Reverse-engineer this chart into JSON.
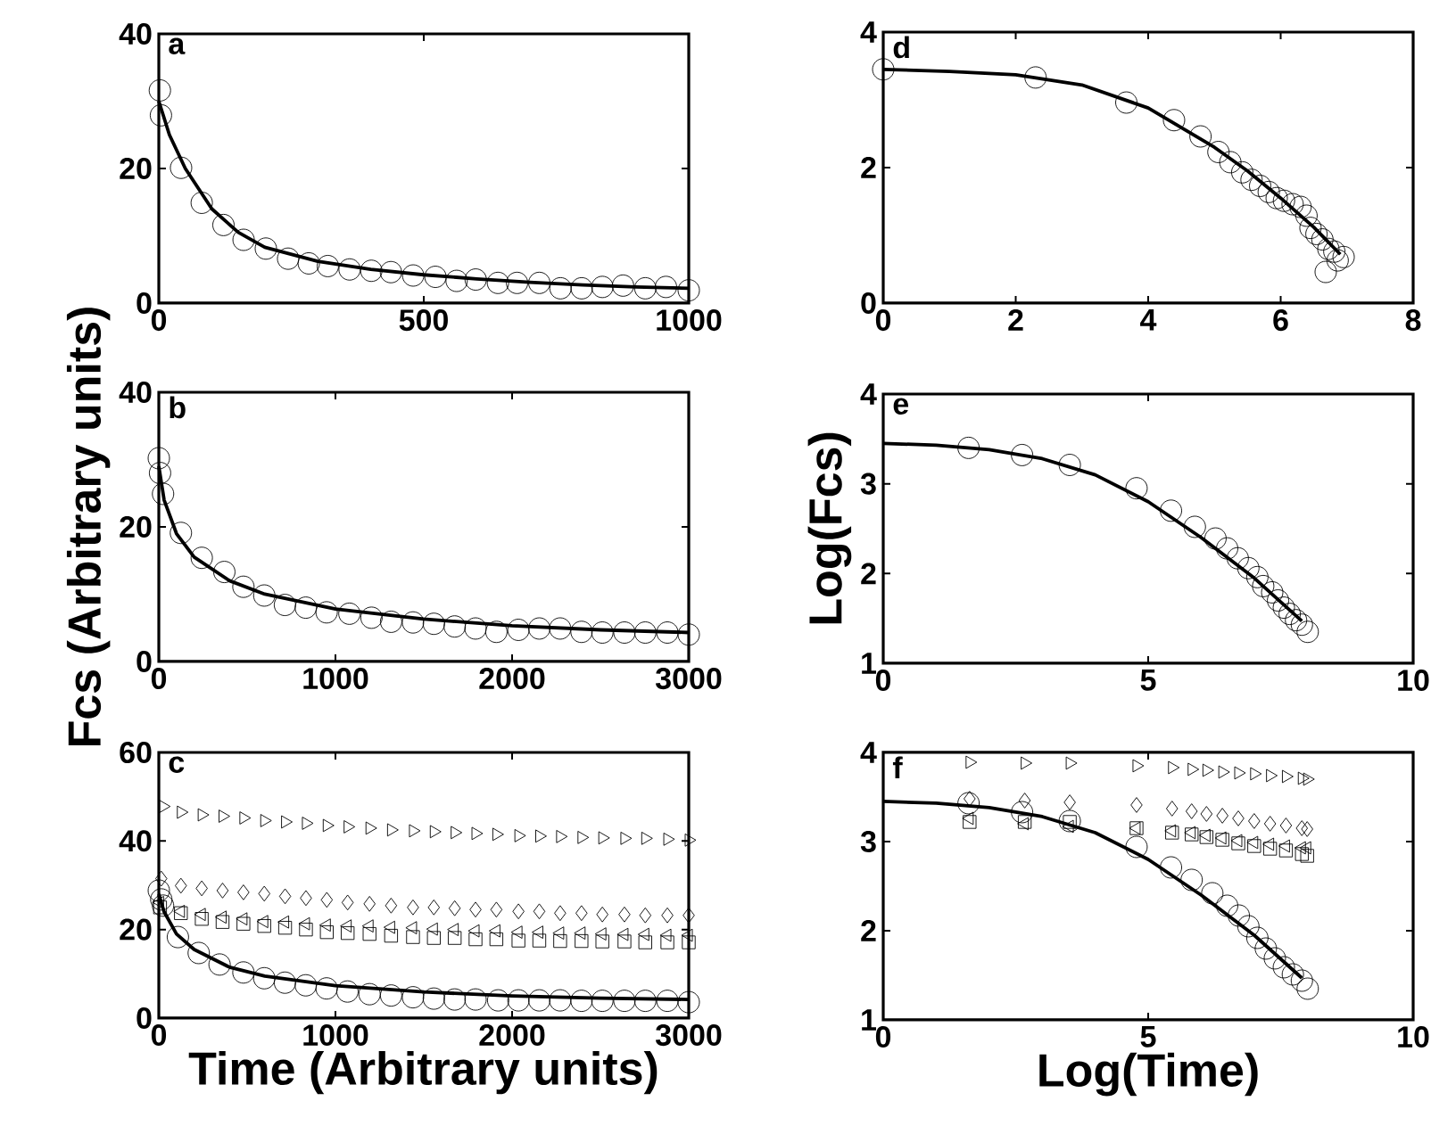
{
  "chart_data": [
    {
      "type": "scatter",
      "annotations": [
        "a"
      ],
      "xlim": [
        0,
        1000
      ],
      "ylim": [
        0,
        40
      ],
      "xticks": [
        0,
        500,
        1000
      ],
      "yticks": [
        0,
        20,
        40
      ],
      "series": [
        {
          "marker": "circle",
          "color": "#000000",
          "x": [
            2,
            4,
            42,
            81,
            122,
            160,
            202,
            244,
            283,
            319,
            360,
            401,
            438,
            480,
            522,
            562,
            598,
            640,
            676,
            718,
            758,
            798,
            837,
            876,
            918,
            957,
            1000
          ],
          "values": [
            31.6,
            27.9,
            20.1,
            14.9,
            11.6,
            9.4,
            8.1,
            6.6,
            5.9,
            5.5,
            5.0,
            4.8,
            4.6,
            4.1,
            3.9,
            3.3,
            3.5,
            3.0,
            3.0,
            3.0,
            2.2,
            2.2,
            2.4,
            2.6,
            2.2,
            2.4,
            1.9
          ]
        },
        {
          "type": "line",
          "color": "#000000",
          "x": [
            0,
            20,
            50,
            100,
            150,
            200,
            300,
            400,
            500,
            600,
            700,
            800,
            900,
            1000
          ],
          "values": [
            30,
            25,
            20,
            14,
            10.5,
            8.3,
            6.2,
            5,
            4.2,
            3.6,
            3.1,
            2.7,
            2.4,
            2.2
          ]
        }
      ]
    },
    {
      "type": "scatter",
      "annotations": [
        "b"
      ],
      "ylabel": "Fcs (Arbitrary units)",
      "xlim": [
        0,
        3000
      ],
      "ylim": [
        0,
        40
      ],
      "xticks": [
        0,
        1000,
        2000,
        3000
      ],
      "yticks": [
        0,
        20,
        40
      ],
      "series": [
        {
          "marker": "circle",
          "color": "#000000",
          "x": [
            0,
            7,
            24,
            125,
            243,
            371,
            479,
            597,
            714,
            832,
            950,
            1079,
            1204,
            1315,
            1439,
            1557,
            1675,
            1793,
            1911,
            2036,
            2154,
            2272,
            2393,
            2511,
            2636,
            2754,
            2879,
            3000
          ],
          "values": [
            30.2,
            28,
            24.9,
            19.1,
            15.4,
            13.3,
            11.1,
            9.8,
            8.4,
            8.0,
            7.3,
            7.1,
            6.5,
            5.9,
            5.8,
            5.6,
            5.2,
            4.9,
            4.4,
            4.7,
            4.9,
            4.9,
            4.4,
            4.3,
            4.3,
            4.3,
            4.3,
            4.0
          ]
        },
        {
          "type": "line",
          "color": "#000000",
          "x": [
            0,
            30,
            100,
            200,
            400,
            600,
            1000,
            1500,
            2000,
            2500,
            3000
          ],
          "values": [
            29,
            24,
            19,
            15.5,
            12,
            10,
            7.8,
            6.3,
            5.3,
            4.7,
            4.3
          ]
        }
      ]
    },
    {
      "type": "scatter",
      "annotations": [
        "c"
      ],
      "xlabel": "Time (Arbitrary units)",
      "xlim": [
        0,
        3000
      ],
      "ylim": [
        0,
        60
      ],
      "xticks": [
        0,
        1000,
        2000,
        3000
      ],
      "yticks": [
        0,
        20,
        40,
        60
      ],
      "series": [
        {
          "marker": "triangle-right",
          "color": "#000000",
          "x": [
            24,
            125,
            243,
            361,
            479,
            597,
            715,
            833,
            951,
            1069,
            1193,
            1315,
            1439,
            1557,
            1675,
            1793,
            1911,
            2036,
            2154,
            2272,
            2393,
            2511,
            2636,
            2754,
            2879,
            3000
          ],
          "values": [
            47.8,
            46.5,
            45.9,
            45.6,
            45.2,
            44.6,
            44.3,
            44.0,
            43.5,
            43.2,
            42.9,
            42.5,
            42.3,
            42.1,
            41.9,
            41.7,
            41.5,
            41.2,
            41.1,
            41.0,
            40.8,
            40.7,
            40.6,
            40.6,
            40.4,
            40.2
          ]
        },
        {
          "marker": "diamond",
          "color": "#000000",
          "x": [
            14,
            125,
            243,
            361,
            479,
            597,
            715,
            833,
            951,
            1069,
            1193,
            1315,
            1439,
            1557,
            1675,
            1793,
            1911,
            2036,
            2154,
            2272,
            2393,
            2511,
            2636,
            2754,
            2879,
            3000
          ],
          "values": [
            31.5,
            29.9,
            29.3,
            28.8,
            28.4,
            28.1,
            27.5,
            27.1,
            26.7,
            26.1,
            25.8,
            25.4,
            25.0,
            25.0,
            24.8,
            24.5,
            24.5,
            24.1,
            24.1,
            23.7,
            23.7,
            23.4,
            23.4,
            23.2,
            23.2,
            23.2
          ]
        },
        {
          "marker": "triangle-left",
          "color": "#000000",
          "x": [
            7,
            125,
            243,
            361,
            479,
            597,
            715,
            833,
            951,
            1069,
            1193,
            1315,
            1439,
            1557,
            1675,
            1793,
            1911,
            2036,
            2154,
            2272,
            2393,
            2511,
            2636,
            2754,
            2879,
            3000
          ],
          "values": [
            26.1,
            24.1,
            23.4,
            22.8,
            22.4,
            21.8,
            21.7,
            21.3,
            21.0,
            20.8,
            20.8,
            20.5,
            20.4,
            20.1,
            20.0,
            19.7,
            19.7,
            19.4,
            19.4,
            19.2,
            19.2,
            19.0,
            18.9,
            18.9,
            18.7,
            18.7
          ]
        },
        {
          "marker": "square",
          "color": "#000000",
          "x": [
            7,
            125,
            243,
            361,
            479,
            597,
            715,
            833,
            951,
            1069,
            1193,
            1315,
            1439,
            1557,
            1675,
            1793,
            1911,
            2036,
            2154,
            2272,
            2393,
            2511,
            2636,
            2754,
            2879,
            3000
          ],
          "values": [
            25.0,
            23.7,
            22.4,
            21.7,
            21.3,
            20.8,
            20.4,
            20.0,
            19.4,
            19.2,
            19.0,
            18.6,
            18.3,
            18.1,
            18.1,
            17.8,
            17.8,
            17.5,
            17.5,
            17.4,
            17.4,
            17.3,
            17.3,
            17.1,
            17.1,
            17.1
          ]
        },
        {
          "marker": "circle",
          "color": "#000000",
          "x": [
            0,
            14,
            24,
            108,
            226,
            344,
            479,
            597,
            714,
            832,
            950,
            1068,
            1193,
            1315,
            1439,
            1557,
            1675,
            1793,
            1921,
            2036,
            2154,
            2272,
            2393,
            2511,
            2636,
            2754,
            2879,
            3000
          ],
          "values": [
            28.8,
            26.8,
            25.4,
            18.3,
            14.7,
            12.1,
            10.3,
            9.0,
            8.0,
            7.4,
            6.7,
            6.0,
            5.4,
            5.1,
            4.7,
            4.4,
            4.2,
            4.2,
            4.0,
            4.0,
            4.0,
            4.0,
            3.9,
            3.9,
            3.9,
            3.9,
            3.9,
            3.6
          ]
        },
        {
          "type": "line",
          "color": "#000000",
          "x": [
            0,
            30,
            100,
            200,
            400,
            600,
            1000,
            1500,
            2000,
            2500,
            3000
          ],
          "values": [
            28,
            24,
            19,
            15.5,
            11.5,
            9.5,
            7.3,
            5.9,
            5.0,
            4.5,
            4.2
          ]
        }
      ]
    },
    {
      "type": "scatter",
      "annotations": [
        "d"
      ],
      "xlim": [
        0,
        8
      ],
      "ylim": [
        0,
        4
      ],
      "xticks": [
        0,
        2,
        4,
        6,
        8
      ],
      "yticks": [
        0,
        2,
        4
      ],
      "series": [
        {
          "marker": "circle",
          "color": "#000000",
          "x": [
            0,
            2.3,
            3.67,
            4.39,
            4.79,
            5.06,
            5.24,
            5.42,
            5.56,
            5.69,
            5.82,
            5.94,
            6.05,
            6.18,
            6.3,
            6.39,
            6.45,
            6.54,
            6.63,
            6.72,
            6.81,
            6.86,
            6.95,
            6.68
          ],
          "values": [
            3.45,
            3.33,
            2.96,
            2.7,
            2.46,
            2.23,
            2.08,
            1.93,
            1.82,
            1.73,
            1.64,
            1.55,
            1.51,
            1.46,
            1.42,
            1.29,
            1.11,
            1.02,
            0.94,
            0.8,
            0.76,
            0.63,
            0.68,
            0.46
          ]
        },
        {
          "type": "line",
          "color": "#000000",
          "x": [
            0,
            1,
            2,
            3,
            4,
            5,
            5.5,
            6,
            6.5,
            6.9
          ],
          "values": [
            3.45,
            3.42,
            3.37,
            3.22,
            2.88,
            2.3,
            1.95,
            1.55,
            1.12,
            0.72
          ]
        }
      ]
    },
    {
      "type": "scatter",
      "annotations": [
        "e"
      ],
      "ylabel": "Log(Fcs)",
      "xlim": [
        0,
        10
      ],
      "ylim": [
        1,
        4
      ],
      "xticks": [
        0,
        5,
        10
      ],
      "yticks": [
        1,
        2,
        3,
        4
      ],
      "series": [
        {
          "marker": "circle",
          "color": "#000000",
          "x": [
            1.61,
            2.62,
            3.52,
            4.78,
            5.43,
            5.88,
            6.27,
            6.49,
            6.69,
            6.89,
            7.06,
            7.17,
            7.34,
            7.45,
            7.56,
            7.67,
            7.79,
            7.9,
            8.01
          ],
          "values": [
            3.4,
            3.32,
            3.21,
            2.95,
            2.7,
            2.52,
            2.39,
            2.28,
            2.17,
            2.06,
            1.96,
            1.86,
            1.79,
            1.7,
            1.62,
            1.55,
            1.48,
            1.43,
            1.35
          ]
        },
        {
          "type": "line",
          "color": "#000000",
          "x": [
            0,
            1,
            2,
            3,
            4,
            5,
            6,
            7,
            7.9
          ],
          "values": [
            3.45,
            3.43,
            3.38,
            3.28,
            3.1,
            2.8,
            2.4,
            1.95,
            1.47
          ]
        }
      ]
    },
    {
      "type": "scatter",
      "annotations": [
        "f"
      ],
      "xlabel": "Log(Time)",
      "xlim": [
        0,
        10
      ],
      "ylim": [
        1,
        4
      ],
      "xticks": [
        0,
        5,
        10
      ],
      "yticks": [
        1,
        2,
        3,
        4
      ],
      "series": [
        {
          "marker": "triangle-right",
          "color": "#000000",
          "x": [
            1.63,
            2.67,
            3.52,
            4.78,
            5.45,
            5.82,
            6.1,
            6.4,
            6.7,
            7.0,
            7.3,
            7.6,
            7.9,
            8.0
          ],
          "values": [
            3.89,
            3.88,
            3.88,
            3.85,
            3.83,
            3.81,
            3.8,
            3.78,
            3.77,
            3.76,
            3.74,
            3.73,
            3.71,
            3.7
          ]
        },
        {
          "marker": "diamond",
          "color": "#000000",
          "x": [
            1.63,
            2.67,
            3.52,
            4.78,
            5.45,
            5.82,
            6.1,
            6.4,
            6.7,
            7.0,
            7.3,
            7.6,
            7.9,
            8.0
          ],
          "values": [
            3.48,
            3.46,
            3.44,
            3.41,
            3.37,
            3.34,
            3.31,
            3.29,
            3.26,
            3.23,
            3.2,
            3.18,
            3.15,
            3.14
          ]
        },
        {
          "marker": "triangle-left",
          "color": "#000000",
          "x": [
            1.63,
            2.67,
            3.52,
            4.78,
            5.45,
            5.82,
            6.1,
            6.4,
            6.7,
            7.0,
            7.3,
            7.6,
            7.9,
            8.0
          ],
          "values": [
            3.26,
            3.2,
            3.17,
            3.15,
            3.12,
            3.1,
            3.07,
            3.04,
            3.01,
            2.99,
            2.97,
            2.95,
            2.93,
            2.93
          ]
        },
        {
          "marker": "square",
          "color": "#000000",
          "x": [
            1.63,
            2.67,
            3.52,
            4.78,
            5.45,
            5.82,
            6.1,
            6.4,
            6.7,
            7.0,
            7.3,
            7.6,
            7.9,
            8.0
          ],
          "values": [
            3.22,
            3.22,
            3.22,
            3.15,
            3.1,
            3.08,
            3.05,
            3.02,
            2.98,
            2.95,
            2.92,
            2.9,
            2.86,
            2.84
          ]
        },
        {
          "marker": "circle",
          "color": "#000000",
          "x": [
            1.61,
            2.62,
            3.52,
            4.78,
            5.43,
            5.82,
            6.21,
            6.49,
            6.71,
            6.89,
            7.06,
            7.22,
            7.39,
            7.56,
            7.73,
            7.9,
            8.01
          ],
          "values": [
            3.43,
            3.33,
            3.23,
            2.94,
            2.71,
            2.57,
            2.42,
            2.28,
            2.17,
            2.05,
            1.92,
            1.8,
            1.69,
            1.59,
            1.51,
            1.44,
            1.35
          ]
        },
        {
          "type": "line",
          "color": "#000000",
          "x": [
            0,
            1,
            2,
            3,
            4,
            5,
            6,
            7,
            7.9
          ],
          "values": [
            3.45,
            3.43,
            3.38,
            3.28,
            3.1,
            2.8,
            2.4,
            1.95,
            1.47
          ]
        }
      ]
    }
  ]
}
